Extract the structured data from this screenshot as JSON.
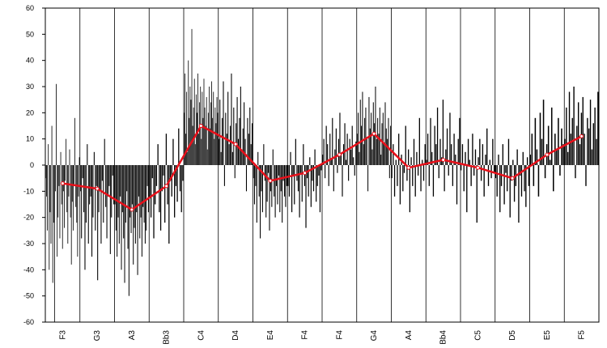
{
  "chart_data": {
    "type": "bar",
    "title": "",
    "xlabel": "",
    "ylabel": "",
    "ylim": [
      -60,
      60
    ],
    "yticks": [
      60,
      50,
      40,
      30,
      20,
      10,
      0,
      -10,
      -20,
      -30,
      -40,
      -50,
      -60
    ],
    "grid": "vertical lines between categories",
    "legend": "none",
    "categories": [
      "F3",
      "G3",
      "A3",
      "Bb3",
      "C4",
      "D4",
      "E4",
      "F4",
      "F4",
      "G4",
      "A4",
      "Bb4",
      "C5",
      "D5",
      "E5",
      "F5"
    ],
    "bar_color": "#000000",
    "line_color": "#e8101a",
    "series": [
      {
        "type": "line",
        "values": [
          -7,
          -9,
          -17,
          -8,
          15,
          8,
          -6,
          -3,
          4,
          12,
          -1,
          2,
          -1,
          -5,
          4,
          11
        ]
      },
      {
        "type": "bar",
        "values_per_category": [
          [
            -5,
            -12,
            -25,
            8,
            -40,
            -18,
            -30,
            15,
            -45,
            -22,
            -60,
            -10,
            31,
            -35,
            -20,
            -8,
            -28,
            5,
            -15,
            -32,
            -10,
            -24,
            -6,
            10,
            -18,
            -30,
            -12,
            6,
            -20,
            -38,
            -14,
            -25,
            -8,
            18,
            -16,
            -22,
            -35,
            -12,
            3
          ],
          [
            -10,
            -28,
            -5,
            -18,
            -40,
            -22,
            8,
            -30,
            -15,
            -12,
            -35,
            -20,
            5,
            -25,
            -8,
            -44,
            -18,
            -10,
            -30,
            -6,
            -22,
            10,
            -16,
            -28,
            -12,
            -8,
            -34,
            -20,
            -4,
            -15
          ],
          [
            -15,
            -25,
            -35,
            -20,
            -30,
            -12,
            -40,
            -18,
            -28,
            -45,
            -22,
            -10,
            -32,
            -50,
            -20,
            -26,
            -15,
            -38,
            -24,
            -30,
            -18,
            -42,
            -12,
            -28,
            -20,
            -35,
            -16,
            -22,
            -30,
            -25,
            -8,
            -18
          ],
          [
            -12,
            -20,
            -5,
            -28,
            -15,
            -8,
            8,
            -18,
            -25,
            -10,
            -4,
            -22,
            12,
            -15,
            -30,
            -6,
            -12,
            10,
            -20,
            -8,
            -14,
            14,
            -10,
            -18,
            -6
          ],
          [
            20,
            35,
            12,
            28,
            5,
            40,
            18,
            30,
            25,
            52,
            15,
            22,
            33,
            8,
            27,
            20,
            35,
            12,
            24,
            30,
            10,
            28,
            18,
            33,
            22,
            15,
            26,
            6,
            20,
            30,
            14,
            24,
            32,
            18,
            28,
            10,
            22,
            16,
            26,
            20
          ],
          [
            10,
            25,
            5,
            18,
            32,
            -8,
            20,
            12,
            28,
            8,
            15,
            35,
            5,
            22,
            -5,
            16,
            26,
            10,
            18,
            30,
            6,
            14,
            24,
            10,
            -10,
            18,
            12,
            22,
            8,
            16
          ],
          [
            -5,
            -15,
            -8,
            -22,
            5,
            -12,
            -28,
            -10,
            -18,
            8,
            -6,
            -20,
            -14,
            -3,
            -25,
            -10,
            -16,
            6,
            -12,
            -20,
            -8,
            -15,
            -4,
            -18,
            -10,
            -22,
            -6,
            -12,
            -16,
            -8
          ],
          [
            -8,
            -12,
            5,
            -18,
            -4,
            -15,
            10,
            -6,
            -10,
            -20,
            -3,
            -14,
            8,
            -8,
            -24,
            -5,
            -12,
            3,
            -16,
            -6,
            -10,
            6,
            -14,
            -8,
            -4,
            -18,
            -2
          ],
          [
            4,
            10,
            -5,
            15,
            8,
            -8,
            12,
            2,
            18,
            -10,
            6,
            14,
            -3,
            10,
            20,
            4,
            -12,
            8,
            16,
            2,
            12,
            -6,
            10,
            6,
            15,
            3,
            -4,
            9
          ],
          [
            12,
            20,
            5,
            25,
            15,
            28,
            8,
            18,
            22,
            10,
            -10,
            26,
            14,
            20,
            6,
            24,
            16,
            30,
            10,
            18,
            12,
            22,
            4,
            16,
            20,
            8,
            24,
            14,
            10,
            18,
            -5,
            15
          ],
          [
            -5,
            8,
            -12,
            2,
            -8,
            12,
            -15,
            4,
            -10,
            -3,
            15,
            -6,
            6,
            -18,
            3,
            -8,
            10,
            -12,
            5,
            -4,
            18,
            -10,
            2,
            -6,
            8
          ],
          [
            2,
            12,
            -8,
            18,
            5,
            -12,
            15,
            8,
            22,
            -5,
            10,
            3,
            25,
            -10,
            6,
            14,
            -4,
            20,
            8,
            -8,
            12,
            4,
            -15,
            10,
            18
          ],
          [
            -2,
            8,
            -10,
            5,
            -18,
            10,
            2,
            -8,
            12,
            -4,
            6,
            -22,
            3,
            10,
            -6,
            8,
            -12,
            4,
            14,
            -8,
            2,
            -5,
            10,
            -3
          ],
          [
            -5,
            -12,
            4,
            -18,
            -8,
            8,
            -15,
            -3,
            -10,
            10,
            -20,
            -6,
            2,
            -14,
            -8,
            6,
            -22,
            -4,
            -12,
            5,
            -10,
            -16,
            3,
            -8
          ],
          [
            4,
            12,
            -8,
            18,
            6,
            -12,
            20,
            10,
            25,
            -5,
            8,
            15,
            2,
            22,
            -10,
            12,
            6,
            18,
            -4,
            14,
            8
          ],
          [
            10,
            22,
            5,
            28,
            12,
            18,
            30,
            -5,
            15,
            24,
            8,
            20,
            26,
            12,
            -8,
            18,
            14,
            25,
            6,
            16,
            22,
            10,
            28
          ]
        ]
      }
    ]
  }
}
